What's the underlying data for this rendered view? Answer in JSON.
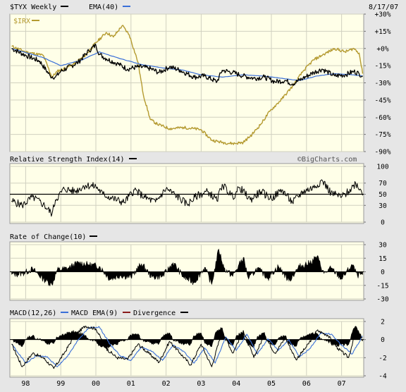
{
  "header": {
    "ticker": "$TYX Weekly",
    "ema_label": "EMA(40)",
    "date": "8/17/07",
    "overlay_ticker": "$IRX"
  },
  "watermark": "©BigCharts.com",
  "colors": {
    "background": "#ffffe8",
    "frame": "#e6e6e6",
    "grid": "#d0d0c0",
    "price": "#000000",
    "ema": "#3a6fd8",
    "overlay": "#b49a30",
    "macd_signal": "#3a6fd8",
    "divergence": "#8a1c1c"
  },
  "x_axis": {
    "labels": [
      "98",
      "99",
      "00",
      "01",
      "02",
      "03",
      "04",
      "05",
      "06",
      "07"
    ],
    "years": [
      1998,
      1999,
      2000,
      2001,
      2002,
      2003,
      2004,
      2005,
      2006,
      2007
    ]
  },
  "chart_data": [
    {
      "type": "line",
      "id": "price",
      "title": "$TYX Weekly",
      "ylabel": "",
      "y_scale": "percent",
      "ylim": [
        -90,
        30
      ],
      "y_ticks": [
        "+30%",
        "+15%",
        "+0%",
        "-15%",
        "-30%",
        "-45%",
        "-60%",
        "-75%",
        "-90%"
      ],
      "y_tick_values": [
        30,
        15,
        0,
        -15,
        -30,
        -45,
        -60,
        -75,
        -90
      ],
      "x_range": [
        1997.55,
        2007.63
      ],
      "series": [
        {
          "name": "$TYX Weekly",
          "color": "#000000",
          "x": [
            1997.6,
            1998.0,
            1998.4,
            1998.7,
            1998.85,
            1999.0,
            1999.5,
            1999.8,
            2000.0,
            2000.1,
            2000.3,
            2000.6,
            2000.9,
            2001.2,
            2001.5,
            2001.8,
            2002.1,
            2002.4,
            2002.8,
            2003.1,
            2003.45,
            2003.6,
            2003.9,
            2004.2,
            2004.5,
            2004.8,
            2005.1,
            2005.4,
            2005.6,
            2005.9,
            2006.2,
            2006.45,
            2006.8,
            2007.1,
            2007.35,
            2007.5,
            2007.6
          ],
          "values": [
            0,
            -6,
            -11,
            -24,
            -25,
            -20,
            -12,
            -2,
            3,
            -5,
            -9,
            -13,
            -18,
            -16,
            -17,
            -21,
            -16,
            -19,
            -25,
            -24,
            -29,
            -19,
            -21,
            -24,
            -26,
            -25,
            -29,
            -28,
            -31,
            -26,
            -21,
            -18,
            -24,
            -23,
            -20,
            -22,
            -24
          ]
        },
        {
          "name": "EMA(40)",
          "color": "#3a6fd8",
          "x": [
            1997.6,
            1998.5,
            1999.0,
            1999.6,
            2000.1,
            2000.7,
            2001.3,
            2001.9,
            2002.5,
            2003.0,
            2003.6,
            2004.2,
            2004.8,
            2005.3,
            2005.8,
            2006.3,
            2006.8,
            2007.3,
            2007.6
          ],
          "values": [
            0,
            -8,
            -15,
            -10,
            -3,
            -9,
            -14,
            -17,
            -19,
            -23,
            -25,
            -23,
            -24,
            -26,
            -28,
            -24,
            -22,
            -23,
            -24
          ]
        },
        {
          "name": "$IRX",
          "color": "#b49a30",
          "x": [
            1997.6,
            1998.0,
            1998.5,
            1998.75,
            1998.9,
            1999.3,
            1999.7,
            2000.0,
            2000.3,
            2000.5,
            2000.75,
            2000.95,
            2001.2,
            2001.35,
            2001.55,
            2001.75,
            2002.1,
            2002.5,
            2002.8,
            2003.0,
            2003.3,
            2003.6,
            2003.9,
            2004.2,
            2004.45,
            2004.7,
            2004.95,
            2005.3,
            2005.6,
            2005.9,
            2006.2,
            2006.5,
            2006.8,
            2007.1,
            2007.35,
            2007.5,
            2007.6
          ],
          "values": [
            2,
            -3,
            -6,
            -25,
            -20,
            -15,
            -6,
            5,
            14,
            10,
            20,
            12,
            -12,
            -40,
            -62,
            -66,
            -70,
            -69,
            -70,
            -71,
            -80,
            -82,
            -83,
            -82,
            -75,
            -66,
            -55,
            -44,
            -33,
            -20,
            -10,
            -5,
            0,
            -3,
            0,
            -4,
            -22
          ]
        }
      ]
    },
    {
      "type": "line",
      "id": "rsi",
      "title": "Relative Strength Index(14)",
      "ylim": [
        0,
        100
      ],
      "y_ticks": [
        "100",
        "70",
        "50",
        "30",
        "0"
      ],
      "y_tick_values": [
        100,
        70,
        50,
        30,
        0
      ],
      "reference_value": 50,
      "x_range": [
        1997.55,
        2007.63
      ],
      "series": [
        {
          "name": "Relative Strength Index(14)",
          "color": "#000000",
          "x": [
            1997.6,
            1997.9,
            1998.2,
            1998.5,
            1998.75,
            1998.85,
            1999.1,
            1999.4,
            1999.7,
            2000.0,
            2000.2,
            2000.5,
            2000.8,
            2001.1,
            2001.4,
            2001.7,
            2002.0,
            2002.3,
            2002.6,
            2002.9,
            2003.2,
            2003.45,
            2003.6,
            2003.9,
            2004.1,
            2004.4,
            2004.7,
            2005.0,
            2005.3,
            2005.6,
            2005.9,
            2006.2,
            2006.45,
            2006.7,
            2007.0,
            2007.2,
            2007.4,
            2007.55,
            2007.6
          ],
          "values": [
            38,
            30,
            45,
            32,
            15,
            40,
            60,
            55,
            66,
            64,
            50,
            42,
            35,
            58,
            44,
            36,
            60,
            47,
            32,
            48,
            55,
            38,
            68,
            45,
            62,
            40,
            55,
            42,
            58,
            35,
            55,
            62,
            75,
            52,
            45,
            55,
            70,
            58,
            48
          ]
        }
      ]
    },
    {
      "type": "bar",
      "id": "roc",
      "title": "Rate of Change(10)",
      "ylim": [
        -30,
        30
      ],
      "y_ticks": [
        "30",
        "15",
        "0",
        "-15",
        "-30"
      ],
      "y_tick_values": [
        30,
        15,
        0,
        -15,
        -30
      ],
      "x_range": [
        1997.55,
        2007.63
      ],
      "series": [
        {
          "name": "Rate of Change(10)",
          "color": "#000000",
          "x": [
            1997.6,
            1997.9,
            1998.2,
            1998.5,
            1998.75,
            1998.9,
            1999.2,
            1999.5,
            1999.8,
            2000.1,
            2000.4,
            2000.7,
            2001.0,
            2001.3,
            2001.6,
            2001.9,
            2002.2,
            2002.5,
            2002.8,
            2003.1,
            2003.3,
            2003.5,
            2003.65,
            2003.9,
            2004.2,
            2004.35,
            2004.6,
            2004.9,
            2005.2,
            2005.5,
            2005.8,
            2006.1,
            2006.3,
            2006.5,
            2006.7,
            2007.0,
            2007.3,
            2007.45,
            2007.6
          ],
          "values": [
            -3,
            -2,
            3,
            -8,
            -14,
            2,
            4,
            10,
            8,
            6,
            -8,
            -4,
            -6,
            9,
            -6,
            -5,
            10,
            -6,
            -12,
            5,
            -14,
            25,
            4,
            -5,
            16,
            -8,
            4,
            -7,
            6,
            -10,
            6,
            10,
            17,
            -2,
            4,
            -8,
            8,
            -4,
            -3
          ]
        }
      ]
    },
    {
      "type": "line",
      "id": "macd",
      "title": "MACD(12,26)",
      "ylim": [
        -4,
        2
      ],
      "y_ticks": [
        "2",
        "0",
        "-2",
        "-4"
      ],
      "y_tick_values": [
        2,
        0,
        -2,
        -4
      ],
      "x_range": [
        1997.55,
        2007.63
      ],
      "legend": [
        "MACD(12,26)",
        "MACD EMA(9)",
        "Divergence"
      ],
      "series": [
        {
          "name": "MACD(12,26)",
          "color": "#000000",
          "x": [
            1997.6,
            1997.9,
            1998.2,
            1998.5,
            1998.8,
            1999.1,
            1999.4,
            1999.7,
            2000.0,
            2000.3,
            2000.6,
            2000.9,
            2001.2,
            2001.5,
            2001.8,
            2002.1,
            2002.4,
            2002.7,
            2003.0,
            2003.3,
            2003.6,
            2003.9,
            2004.2,
            2004.5,
            2004.8,
            2005.1,
            2005.4,
            2005.7,
            2006.0,
            2006.3,
            2006.6,
            2006.9,
            2007.2,
            2007.4,
            2007.6
          ],
          "values": [
            -0.5,
            -3.0,
            -1.5,
            -2.0,
            -3.2,
            -1.5,
            0.5,
            1.5,
            1.2,
            -1.0,
            -2.0,
            -2.2,
            -0.5,
            -1.5,
            -2.5,
            -0.2,
            -1.5,
            -2.8,
            -0.5,
            -3.0,
            1.0,
            -1.5,
            1.0,
            -2.0,
            0.5,
            -1.5,
            0.2,
            -2.2,
            -0.8,
            1.0,
            0.5,
            -1.0,
            -2.0,
            1.0,
            0.2
          ]
        },
        {
          "name": "MACD EMA(9)",
          "color": "#3a6fd8",
          "x": [
            1997.6,
            1998.0,
            1998.3,
            1998.6,
            1998.9,
            1999.2,
            1999.5,
            1999.8,
            2000.1,
            2000.4,
            2000.7,
            2001.0,
            2001.3,
            2001.6,
            2001.9,
            2002.2,
            2002.5,
            2002.8,
            2003.1,
            2003.4,
            2003.7,
            2004.0,
            2004.3,
            2004.6,
            2004.9,
            2005.2,
            2005.5,
            2005.8,
            2006.1,
            2006.4,
            2006.7,
            2007.0,
            2007.3,
            2007.6
          ],
          "values": [
            -0.5,
            -2.6,
            -1.8,
            -1.9,
            -3.0,
            -1.8,
            0.0,
            1.3,
            1.4,
            -0.5,
            -1.8,
            -2.3,
            -0.8,
            -1.3,
            -2.3,
            -0.6,
            -1.3,
            -2.6,
            -0.9,
            -2.6,
            0.3,
            -1.2,
            0.6,
            -1.6,
            0.1,
            -1.2,
            0.0,
            -1.9,
            -1.0,
            0.7,
            0.6,
            -0.6,
            -1.6,
            0.4
          ]
        }
      ]
    }
  ]
}
